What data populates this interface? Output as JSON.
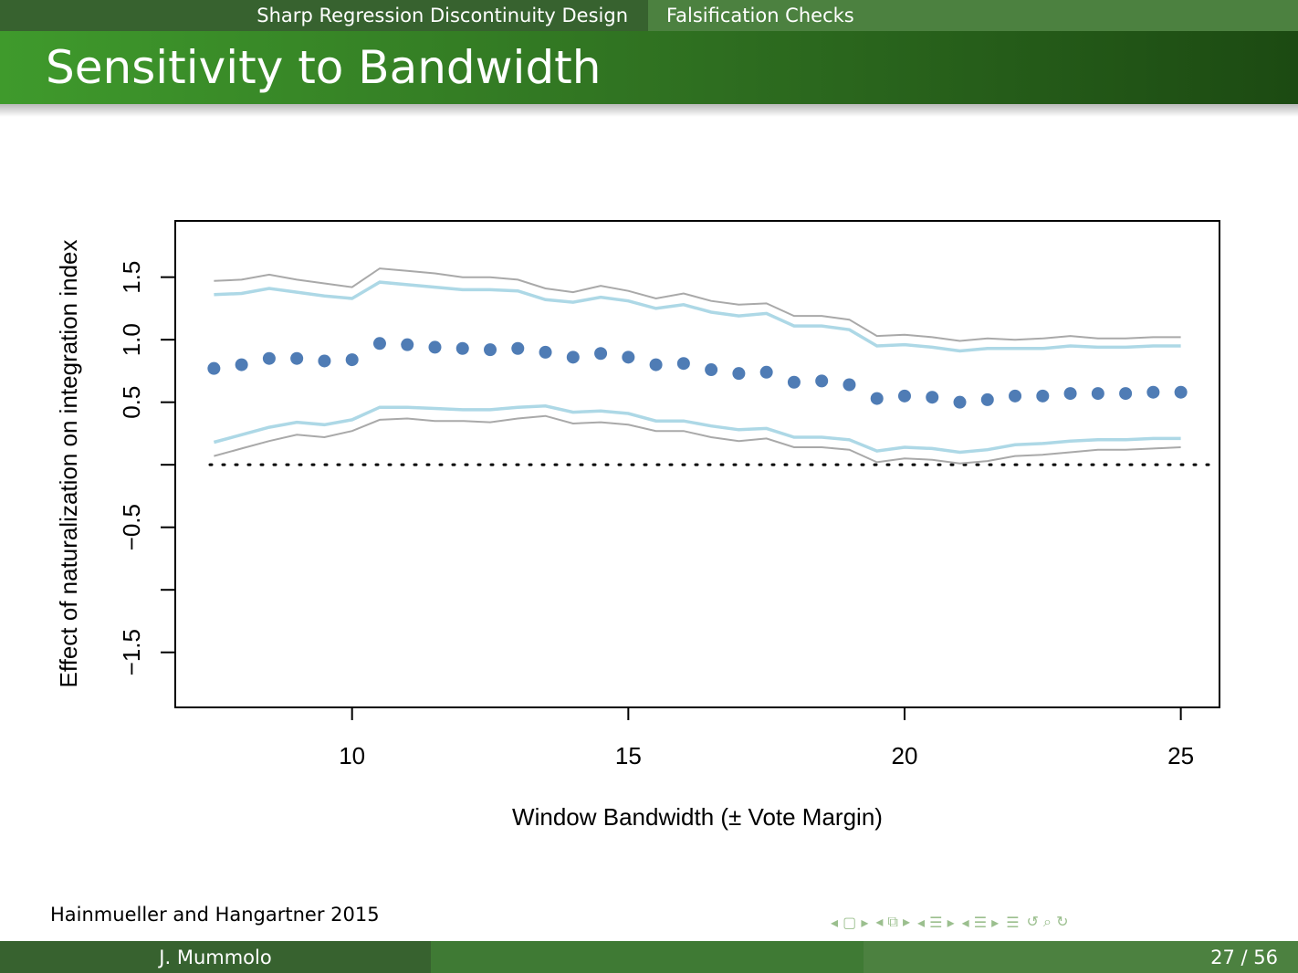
{
  "nav": {
    "section": "Sharp Regression Discontinuity Design",
    "subsection": "Falsification Checks"
  },
  "slide_title": "Sensitivity to Bandwidth",
  "source_note": "Hainmueller and Hangartner 2015",
  "footer": {
    "author": "J. Mummolo",
    "page": "27 / 56"
  },
  "colors": {
    "point": "#4f7cb5",
    "ci_inner": "#add8e6",
    "ci_outer": "#a9a9a9",
    "header_green": "#3f9a2c",
    "nav_dark": "#37622f"
  },
  "chart_data": {
    "type": "scatter",
    "xlabel": "Window Bandwidth (± Vote Margin)",
    "ylabel": "Effect of naturalization on integration index",
    "xlim": [
      6.8,
      25.7
    ],
    "ylim": [
      -1.94,
      1.95
    ],
    "x_ticks": [
      10,
      15,
      20,
      25
    ],
    "x_tick_labels": [
      "10",
      "15",
      "20",
      "25"
    ],
    "y_ticks": [
      -1.5,
      -1.0,
      -0.5,
      0.0,
      0.5,
      1.0,
      1.5
    ],
    "y_tick_labels": [
      "−1.5",
      "",
      "−0.5",
      "",
      "0.5",
      "1.0",
      "1.5"
    ],
    "reference_line": {
      "y": 0,
      "style": "dotted"
    },
    "x": [
      7.5,
      8,
      8.5,
      9,
      9.5,
      10,
      10.5,
      11,
      11.5,
      12,
      12.5,
      13,
      13.5,
      14,
      14.5,
      15,
      15.5,
      16,
      16.5,
      17,
      17.5,
      18,
      18.5,
      19,
      19.5,
      20,
      20.5,
      21,
      21.5,
      22,
      22.5,
      23,
      23.5,
      24,
      24.5,
      25
    ],
    "estimate": [
      0.77,
      0.8,
      0.85,
      0.85,
      0.83,
      0.84,
      0.97,
      0.96,
      0.94,
      0.93,
      0.92,
      0.93,
      0.9,
      0.86,
      0.89,
      0.86,
      0.8,
      0.81,
      0.76,
      0.73,
      0.74,
      0.66,
      0.67,
      0.64,
      0.53,
      0.55,
      0.54,
      0.5,
      0.52,
      0.55,
      0.55,
      0.57,
      0.57,
      0.57,
      0.58,
      0.58
    ],
    "ci90_upper": [
      1.36,
      1.37,
      1.41,
      1.38,
      1.35,
      1.33,
      1.46,
      1.44,
      1.42,
      1.4,
      1.4,
      1.39,
      1.32,
      1.3,
      1.34,
      1.31,
      1.25,
      1.28,
      1.22,
      1.19,
      1.21,
      1.11,
      1.11,
      1.08,
      0.95,
      0.96,
      0.94,
      0.91,
      0.93,
      0.93,
      0.93,
      0.95,
      0.94,
      0.94,
      0.95,
      0.95
    ],
    "ci90_lower": [
      0.18,
      0.24,
      0.3,
      0.34,
      0.32,
      0.36,
      0.46,
      0.46,
      0.45,
      0.44,
      0.44,
      0.46,
      0.47,
      0.42,
      0.43,
      0.41,
      0.35,
      0.35,
      0.31,
      0.28,
      0.29,
      0.22,
      0.22,
      0.2,
      0.11,
      0.14,
      0.13,
      0.1,
      0.12,
      0.16,
      0.17,
      0.19,
      0.2,
      0.2,
      0.21,
      0.21
    ],
    "ci95_upper": [
      1.47,
      1.48,
      1.52,
      1.48,
      1.45,
      1.42,
      1.57,
      1.55,
      1.53,
      1.5,
      1.5,
      1.48,
      1.41,
      1.38,
      1.43,
      1.39,
      1.33,
      1.37,
      1.31,
      1.28,
      1.29,
      1.19,
      1.19,
      1.16,
      1.03,
      1.04,
      1.02,
      0.99,
      1.01,
      1.0,
      1.01,
      1.03,
      1.01,
      1.01,
      1.02,
      1.02
    ],
    "ci95_lower": [
      0.07,
      0.13,
      0.19,
      0.24,
      0.22,
      0.27,
      0.36,
      0.37,
      0.35,
      0.35,
      0.34,
      0.37,
      0.39,
      0.33,
      0.34,
      0.32,
      0.27,
      0.27,
      0.22,
      0.19,
      0.21,
      0.14,
      0.14,
      0.12,
      0.02,
      0.05,
      0.04,
      0.01,
      0.03,
      0.07,
      0.08,
      0.1,
      0.12,
      0.12,
      0.13,
      0.14
    ],
    "grid": false,
    "legend": "none"
  }
}
